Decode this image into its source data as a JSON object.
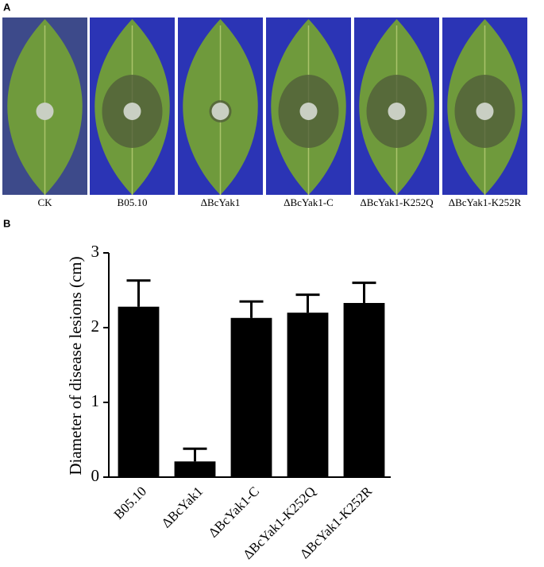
{
  "panel_labels": [
    "A",
    "B"
  ],
  "panel_a": {
    "captions": [
      "CK",
      "B05.10",
      "ΔBcYak1",
      "ΔBcYak1-C",
      "ΔBcYak1-K252Q",
      "ΔBcYak1-K252R"
    ]
  },
  "chart_data": {
    "type": "bar",
    "y_label": "Diameter of disease lesions (cm)",
    "categories": [
      "B05.10",
      "ΔBcYak1",
      "ΔBcYak1-C",
      "ΔBcYak1-K252Q",
      "ΔBcYak1-K252R"
    ],
    "values": [
      2.28,
      0.21,
      2.13,
      2.2,
      2.33
    ],
    "errors": [
      0.35,
      0.17,
      0.22,
      0.24,
      0.27
    ],
    "color": "#000000",
    "ylim": [
      0,
      3
    ],
    "yticks": [
      0,
      1,
      2,
      3
    ],
    "grid": false
  }
}
